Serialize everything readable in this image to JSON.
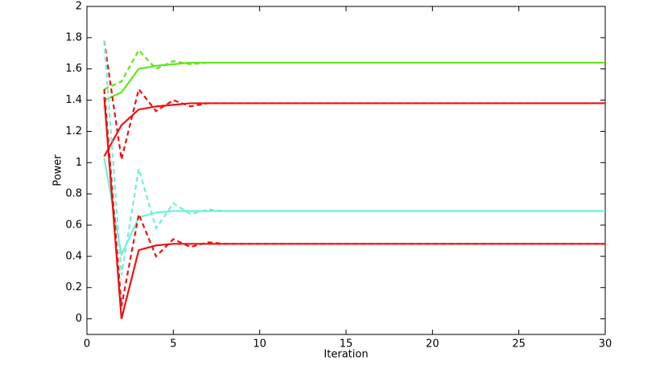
{
  "chart_data": {
    "type": "line",
    "xlabel": "Iteration",
    "ylabel": "Power",
    "x": [
      1,
      2,
      3,
      4,
      5,
      6,
      7,
      8,
      9,
      10,
      11,
      12,
      13,
      14,
      15,
      16,
      17,
      18,
      19,
      20,
      21,
      22,
      23,
      24,
      25,
      26,
      27,
      28,
      29,
      30
    ],
    "xlim": [
      0,
      30
    ],
    "xticks": [
      0,
      5,
      10,
      15,
      20,
      25,
      30
    ],
    "ylim": [
      -0.1,
      2
    ],
    "yticks": [
      0,
      0.2,
      0.4,
      0.6,
      0.8,
      1,
      1.2,
      1.4,
      1.6,
      1.8,
      2
    ],
    "series": [
      {
        "color": "#5fe61a",
        "style": "solid",
        "values": [
          1.4,
          1.45,
          1.6,
          1.62,
          1.63,
          1.64,
          1.64,
          1.64,
          1.64,
          1.64,
          1.64,
          1.64,
          1.64,
          1.64,
          1.64,
          1.64,
          1.64,
          1.64,
          1.64,
          1.64,
          1.64,
          1.64,
          1.64,
          1.64,
          1.64,
          1.64,
          1.64,
          1.64,
          1.64,
          1.64
        ]
      },
      {
        "color": "#5fe61a",
        "style": "dashed",
        "values": [
          1.47,
          1.52,
          1.72,
          1.6,
          1.65,
          1.63,
          1.64,
          1.64,
          1.64,
          1.64,
          1.64,
          1.64,
          1.64,
          1.64,
          1.64,
          1.64,
          1.64,
          1.64,
          1.64,
          1.64,
          1.64,
          1.64,
          1.64,
          1.64,
          1.64,
          1.64,
          1.64,
          1.64,
          1.64,
          1.64
        ]
      },
      {
        "color": "#ee1111",
        "style": "solid",
        "values": [
          1.04,
          1.24,
          1.34,
          1.36,
          1.37,
          1.38,
          1.38,
          1.38,
          1.38,
          1.38,
          1.38,
          1.38,
          1.38,
          1.38,
          1.38,
          1.38,
          1.38,
          1.38,
          1.38,
          1.38,
          1.38,
          1.38,
          1.38,
          1.38,
          1.38,
          1.38,
          1.38,
          1.38,
          1.38,
          1.38
        ]
      },
      {
        "color": "#ee1111",
        "style": "dashed",
        "values": [
          1.78,
          1.02,
          1.47,
          1.33,
          1.4,
          1.36,
          1.38,
          1.38,
          1.38,
          1.38,
          1.38,
          1.38,
          1.38,
          1.38,
          1.38,
          1.38,
          1.38,
          1.38,
          1.38,
          1.38,
          1.38,
          1.38,
          1.38,
          1.38,
          1.38,
          1.38,
          1.38,
          1.38,
          1.38,
          1.38
        ]
      },
      {
        "color": "#6ff0dc",
        "style": "solid",
        "values": [
          1.03,
          0.41,
          0.65,
          0.68,
          0.69,
          0.69,
          0.69,
          0.69,
          0.69,
          0.69,
          0.69,
          0.69,
          0.69,
          0.69,
          0.69,
          0.69,
          0.69,
          0.69,
          0.69,
          0.69,
          0.69,
          0.69,
          0.69,
          0.69,
          0.69,
          0.69,
          0.69,
          0.69,
          0.69,
          0.69
        ]
      },
      {
        "color": "#6ff0dc",
        "style": "dashed",
        "values": [
          1.78,
          0.28,
          0.96,
          0.58,
          0.74,
          0.67,
          0.7,
          0.69,
          0.69,
          0.69,
          0.69,
          0.69,
          0.69,
          0.69,
          0.69,
          0.69,
          0.69,
          0.69,
          0.69,
          0.69,
          0.69,
          0.69,
          0.69,
          0.69,
          0.69,
          0.69,
          0.69,
          0.69,
          0.69,
          0.69
        ]
      },
      {
        "color": "#ee1111",
        "style": "solid",
        "values": [
          1.42,
          0.0,
          0.44,
          0.47,
          0.48,
          0.48,
          0.48,
          0.48,
          0.48,
          0.48,
          0.48,
          0.48,
          0.48,
          0.48,
          0.48,
          0.48,
          0.48,
          0.48,
          0.48,
          0.48,
          0.48,
          0.48,
          0.48,
          0.48,
          0.48,
          0.48,
          0.48,
          0.48,
          0.48,
          0.48
        ]
      },
      {
        "color": "#ee1111",
        "style": "dashed",
        "values": [
          1.47,
          0.08,
          0.67,
          0.4,
          0.51,
          0.46,
          0.49,
          0.48,
          0.48,
          0.48,
          0.48,
          0.48,
          0.48,
          0.48,
          0.48,
          0.48,
          0.48,
          0.48,
          0.48,
          0.48,
          0.48,
          0.48,
          0.48,
          0.48,
          0.48,
          0.48,
          0.48,
          0.48,
          0.48,
          0.48
        ]
      }
    ]
  }
}
